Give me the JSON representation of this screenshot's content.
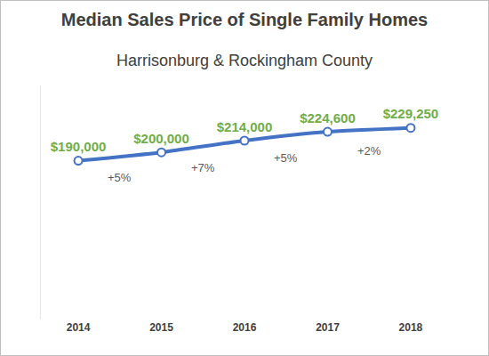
{
  "chart_data": {
    "type": "line",
    "title": "Median Sales Price of Single Family Homes",
    "subtitle": "Harrisonburg & Rockingham County",
    "categories": [
      "2014",
      "2015",
      "2016",
      "2017",
      "2018"
    ],
    "values": [
      190000,
      200000,
      214000,
      224600,
      229250
    ],
    "value_labels": [
      "$190,000",
      "$200,000",
      "$214,000",
      "$224,600",
      "$229,250"
    ],
    "annotations": [
      "+5%",
      "+7%",
      "+5%",
      "+2%"
    ],
    "color": "#4472c4",
    "marker": "circle",
    "line_style": "smooth",
    "data_labels": true,
    "ylim": [
      0,
      280000
    ],
    "grid": false,
    "tick_labels": "x"
  }
}
